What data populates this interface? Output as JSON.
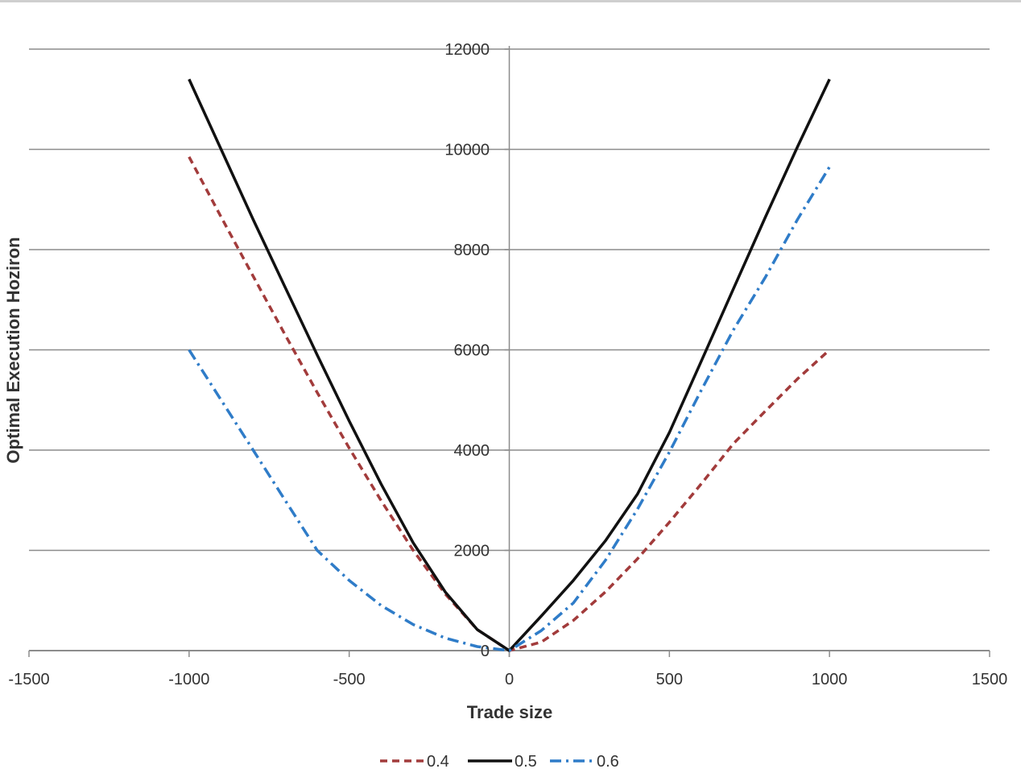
{
  "chart_data": {
    "type": "line",
    "title": "",
    "xlabel": "Trade size",
    "ylabel": "Optimal Execution Hoziron",
    "xlim": [
      -1500,
      1500
    ],
    "ylim": [
      0,
      12000
    ],
    "x_ticks": [
      "-1500",
      "-1000",
      "-500",
      "0",
      "500",
      "1000",
      "1500"
    ],
    "y_ticks": [
      "0",
      "2000",
      "4000",
      "6000",
      "8000",
      "10000",
      "12000"
    ],
    "grid": "horizontal",
    "legend_position": "bottom",
    "series": [
      {
        "name": "0.4",
        "color": "#a23b3b",
        "style": "dashed",
        "x": [
          -1000,
          -900,
          -800,
          -700,
          -600,
          -500,
          -400,
          -300,
          -200,
          -100,
          0,
          100,
          200,
          300,
          400,
          500,
          600,
          700,
          800,
          900,
          1000
        ],
        "y": [
          9850,
          8650,
          7470,
          6300,
          5150,
          4040,
          2990,
          2000,
          1130,
          420,
          0,
          170,
          600,
          1170,
          1830,
          2560,
          3330,
          4130,
          4780,
          5420,
          6000
        ]
      },
      {
        "name": "0.5",
        "color": "#111111",
        "style": "solid",
        "x": [
          -1000,
          -900,
          -800,
          -700,
          -600,
          -500,
          -400,
          -300,
          -200,
          -100,
          0,
          100,
          200,
          300,
          400,
          500,
          600,
          700,
          800,
          900,
          1000
        ],
        "y": [
          11400,
          10000,
          8600,
          7250,
          5900,
          4580,
          3320,
          2150,
          1170,
          420,
          0,
          690,
          1400,
          2190,
          3120,
          4350,
          5780,
          7220,
          8650,
          10050,
          11400
        ]
      },
      {
        "name": "0.6",
        "color": "#2f7cc8",
        "style": "dashdot",
        "x": [
          -1000,
          -900,
          -800,
          -700,
          -600,
          -500,
          -400,
          -300,
          -200,
          -100,
          0,
          100,
          200,
          300,
          400,
          500,
          600,
          700,
          800,
          900,
          1000
        ],
        "y": [
          6000,
          5000,
          4000,
          3000,
          2000,
          1400,
          900,
          520,
          250,
          80,
          0,
          400,
          950,
          1800,
          2820,
          3960,
          5200,
          6400,
          7450,
          8600,
          9650
        ]
      }
    ]
  }
}
